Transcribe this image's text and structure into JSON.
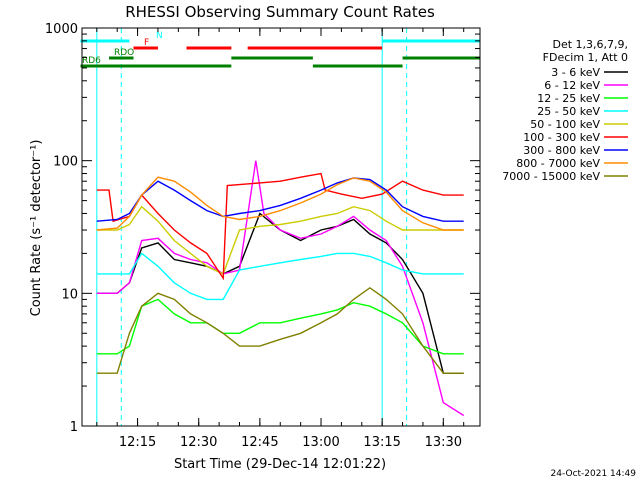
{
  "chart_data": {
    "type": "line",
    "title": "RHESSI Observing Summary Count Rates",
    "xlabel": "Start Time (29-Dec-14 12:01:22)",
    "ylabel": "Count Rate (s⁻¹ detector⁻¹)",
    "y_scale": "log",
    "ylim": [
      1,
      1000
    ],
    "xlim": [
      "12:01:22",
      "13:39:00"
    ],
    "x_ticks": [
      "12:15",
      "12:30",
      "12:45",
      "13:00",
      "13:15",
      "13:30"
    ],
    "y_ticks": [
      "1",
      "10",
      "100",
      "1000"
    ],
    "footer_date": "24-Oct-2021 14:49",
    "legend": {
      "header": [
        "Det 1,3,6,7,9,",
        "FDecim 1, Att 0"
      ],
      "placement": "right"
    },
    "series": [
      {
        "name": "3 - 6 keV",
        "color": "#000000",
        "x": [
          "12:05",
          "12:10",
          "12:13",
          "12:16",
          "12:20",
          "12:24",
          "12:28",
          "12:32",
          "12:36",
          "12:40",
          "12:45",
          "12:50",
          "12:55",
          "13:00",
          "13:04",
          "13:08",
          "13:12",
          "13:16",
          "13:20",
          "13:25",
          "13:30",
          "13:35"
        ],
        "y": [
          10,
          10,
          12,
          22,
          24,
          18,
          17,
          16,
          14,
          16,
          40,
          30,
          25,
          30,
          32,
          36,
          28,
          24,
          18,
          10,
          2.5,
          2.5
        ]
      },
      {
        "name": "6 - 12 keV",
        "color": "#ff00ff",
        "x": [
          "12:05",
          "12:10",
          "12:13",
          "12:16",
          "12:20",
          "12:24",
          "12:28",
          "12:32",
          "12:36",
          "12:40",
          "12:44",
          "12:46",
          "12:50",
          "12:55",
          "13:00",
          "13:04",
          "13:08",
          "13:12",
          "13:16",
          "13:20",
          "13:25",
          "13:30",
          "13:35"
        ],
        "y": [
          10,
          10,
          12,
          25,
          26,
          20,
          18,
          17,
          14,
          15,
          100,
          40,
          30,
          26,
          28,
          32,
          38,
          30,
          25,
          16,
          6,
          1.5,
          1.2
        ]
      },
      {
        "name": "12 - 25 keV",
        "color": "#00ff00",
        "x": [
          "12:05",
          "12:10",
          "12:13",
          "12:16",
          "12:20",
          "12:24",
          "12:28",
          "12:32",
          "12:36",
          "12:40",
          "12:45",
          "12:50",
          "12:55",
          "13:00",
          "13:04",
          "13:08",
          "13:12",
          "13:16",
          "13:20",
          "13:25",
          "13:30",
          "13:35"
        ],
        "y": [
          3.5,
          3.5,
          4,
          8,
          9,
          7,
          6,
          6,
          5,
          5,
          6,
          6,
          6.5,
          7,
          7.5,
          8.5,
          8,
          7,
          6,
          4,
          3.5,
          3.5
        ]
      },
      {
        "name": "25 - 50 keV",
        "color": "#00ffff",
        "x": [
          "12:05",
          "12:10",
          "12:13",
          "12:16",
          "12:20",
          "12:24",
          "12:28",
          "12:32",
          "12:36",
          "12:40",
          "12:45",
          "12:50",
          "12:55",
          "13:00",
          "13:04",
          "13:08",
          "13:12",
          "13:16",
          "13:20",
          "13:25",
          "13:30",
          "13:35"
        ],
        "y": [
          14,
          14,
          14,
          20,
          16,
          12,
          10,
          9,
          9,
          15,
          16,
          17,
          18,
          19,
          20,
          20,
          19,
          17,
          15,
          14,
          14,
          14
        ]
      },
      {
        "name": "50 - 100 keV",
        "color": "#cccc00",
        "x": [
          "12:05",
          "12:10",
          "12:13",
          "12:16",
          "12:20",
          "12:24",
          "12:28",
          "12:32",
          "12:36",
          "12:40",
          "12:45",
          "12:50",
          "12:55",
          "13:00",
          "13:04",
          "13:08",
          "13:12",
          "13:16",
          "13:20",
          "13:25",
          "13:30",
          "13:35"
        ],
        "y": [
          30,
          30,
          33,
          45,
          35,
          25,
          20,
          16,
          14,
          30,
          32,
          33,
          35,
          38,
          40,
          45,
          42,
          35,
          30,
          30,
          30,
          30
        ]
      },
      {
        "name": "100 - 300 keV",
        "color": "#ff0000",
        "x": [
          "12:05",
          "12:08",
          "12:09",
          "12:13",
          "12:16",
          "12:20",
          "12:24",
          "12:28",
          "12:32",
          "12:36",
          "12:37",
          "12:45",
          "12:50",
          "12:55",
          "13:00",
          "13:01",
          "13:05",
          "13:10",
          "13:15",
          "13:20",
          "13:25",
          "13:30",
          "13:35"
        ],
        "y": [
          60,
          60,
          35,
          38,
          55,
          40,
          30,
          24,
          20,
          13,
          65,
          68,
          70,
          75,
          80,
          60,
          56,
          52,
          56,
          70,
          60,
          55,
          55
        ]
      },
      {
        "name": "300 - 800 keV",
        "color": "#0000ff",
        "x": [
          "12:05",
          "12:10",
          "12:13",
          "12:16",
          "12:20",
          "12:24",
          "12:28",
          "12:32",
          "12:36",
          "12:40",
          "12:45",
          "12:50",
          "12:55",
          "13:00",
          "13:04",
          "13:08",
          "13:12",
          "13:16",
          "13:20",
          "13:25",
          "13:30",
          "13:35"
        ],
        "y": [
          35,
          36,
          40,
          55,
          70,
          60,
          50,
          42,
          38,
          40,
          42,
          46,
          52,
          60,
          68,
          74,
          72,
          60,
          45,
          38,
          35,
          35
        ]
      },
      {
        "name": "800 - 7000 keV",
        "color": "#ff8c00",
        "x": [
          "12:05",
          "12:10",
          "12:13",
          "12:16",
          "12:20",
          "12:24",
          "12:28",
          "12:32",
          "12:36",
          "12:40",
          "12:45",
          "12:50",
          "12:55",
          "13:00",
          "13:04",
          "13:08",
          "13:12",
          "13:16",
          "13:20",
          "13:25",
          "13:30",
          "13:35"
        ],
        "y": [
          30,
          31,
          38,
          55,
          75,
          70,
          58,
          46,
          38,
          36,
          38,
          42,
          48,
          56,
          66,
          74,
          70,
          58,
          42,
          34,
          30,
          30
        ]
      },
      {
        "name": "7000 - 15000 keV",
        "color": "#808000",
        "x": [
          "12:05",
          "12:10",
          "12:13",
          "12:16",
          "12:20",
          "12:24",
          "12:28",
          "12:32",
          "12:36",
          "12:40",
          "12:45",
          "12:50",
          "12:55",
          "13:00",
          "13:04",
          "13:08",
          "13:12",
          "13:16",
          "13:20",
          "13:25",
          "13:30",
          "13:35"
        ],
        "y": [
          2.5,
          2.5,
          5,
          8,
          10,
          9,
          7,
          6,
          5,
          4,
          4,
          4.5,
          5,
          6,
          7,
          9,
          11,
          9,
          7,
          4,
          2.5,
          2.5
        ]
      }
    ],
    "state_bars": [
      {
        "label": "N",
        "color": "#00ffff",
        "segments": [
          [
            "12:01",
            "12:13"
          ],
          [
            "13:15",
            "13:39"
          ]
        ]
      },
      {
        "label": "F",
        "color": "#ff0000",
        "segments": [
          [
            "12:14",
            "12:20"
          ],
          [
            "12:27",
            "12:38"
          ],
          [
            "12:42",
            "13:15"
          ]
        ]
      },
      {
        "label": "RDO",
        "color": "#008000",
        "segments": [
          [
            "12:08",
            "12:14"
          ],
          [
            "12:38",
            "12:58"
          ],
          [
            "13:20",
            "13:39"
          ]
        ]
      },
      {
        "label": "RD6",
        "color": "#008000",
        "segments": [
          [
            "12:01",
            "12:38"
          ],
          [
            "12:58",
            "13:20"
          ]
        ]
      }
    ],
    "vlines": [
      {
        "x": "12:05",
        "style": "solid",
        "color": "#00ffff"
      },
      {
        "x": "12:11",
        "style": "dashed",
        "color": "#00ffff"
      },
      {
        "x": "13:15",
        "style": "solid",
        "color": "#00ffff"
      },
      {
        "x": "13:21",
        "style": "dashed",
        "color": "#00ffff"
      }
    ]
  }
}
